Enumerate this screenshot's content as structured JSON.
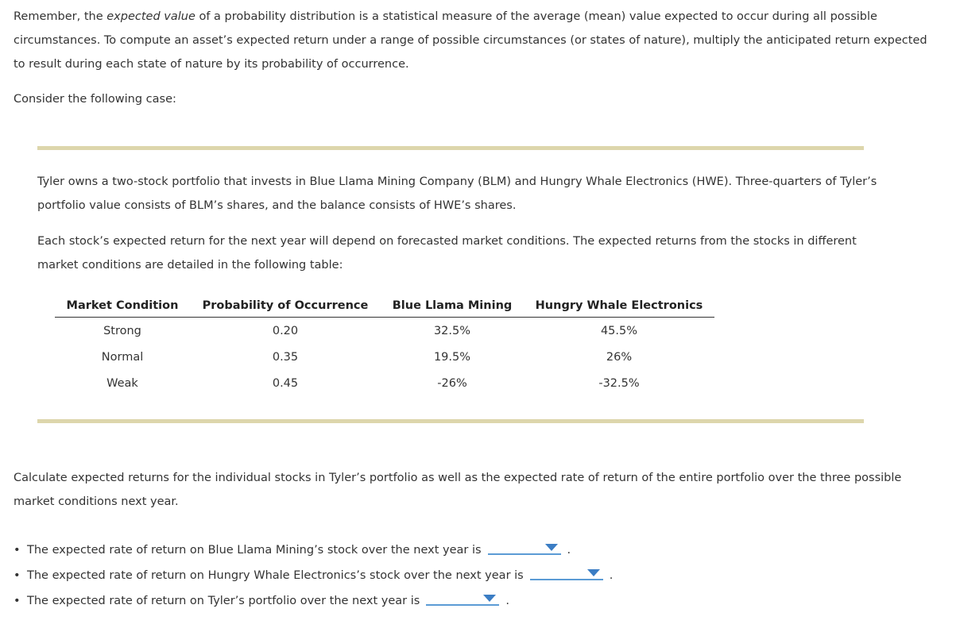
{
  "intro": {
    "before": "Remember, the ",
    "emphasis": "expected value",
    "after": " of a probability distribution is a statistical measure of the average (mean) value expected to occur during all possible circumstances. To compute an asset’s expected return under a range of possible circumstances (or states of nature), multiply the anticipated return expected to result during each state of nature by its probability of occurrence."
  },
  "consider": "Consider the following case:",
  "case": {
    "p1": "Tyler owns a two-stock portfolio that invests in Blue Llama Mining Company (BLM) and Hungry Whale Electronics (HWE). Three-quarters of Tyler’s portfolio value consists of BLM’s shares, and the balance consists of HWE’s shares.",
    "p2": "Each stock’s expected return for the next year will depend on forecasted market conditions. The expected returns from the stocks in different market conditions are detailed in the following table:"
  },
  "table": {
    "headers": [
      "Market Condition",
      "Probability of Occurrence",
      "Blue Llama Mining",
      "Hungry Whale Electronics"
    ],
    "rows": [
      [
        "Strong",
        "0.20",
        "32.5%",
        "45.5%"
      ],
      [
        "Normal",
        "0.35",
        "19.5%",
        "26%"
      ],
      [
        "Weak",
        "0.45",
        "-26%",
        "-32.5%"
      ]
    ]
  },
  "calc": "Calculate expected returns for the individual stocks in Tyler’s portfolio as well as the expected rate of return of the entire portfolio over the three possible market conditions next year.",
  "questions": {
    "bullet": "•",
    "period": ".",
    "q1": "The expected rate of return on Blue Llama Mining’s stock over the next year is",
    "q2": "The expected rate of return on Hungry Whale Electronics’s stock over the next year is",
    "q3": "The expected rate of return on Tyler’s portfolio over the next year is"
  },
  "icons": {
    "dropdown": "caret-down-icon"
  },
  "colors": {
    "rule": "#ddd6ac",
    "dropdown_line": "#5b9bd5",
    "dropdown_arrow": "#3b7dc4"
  }
}
